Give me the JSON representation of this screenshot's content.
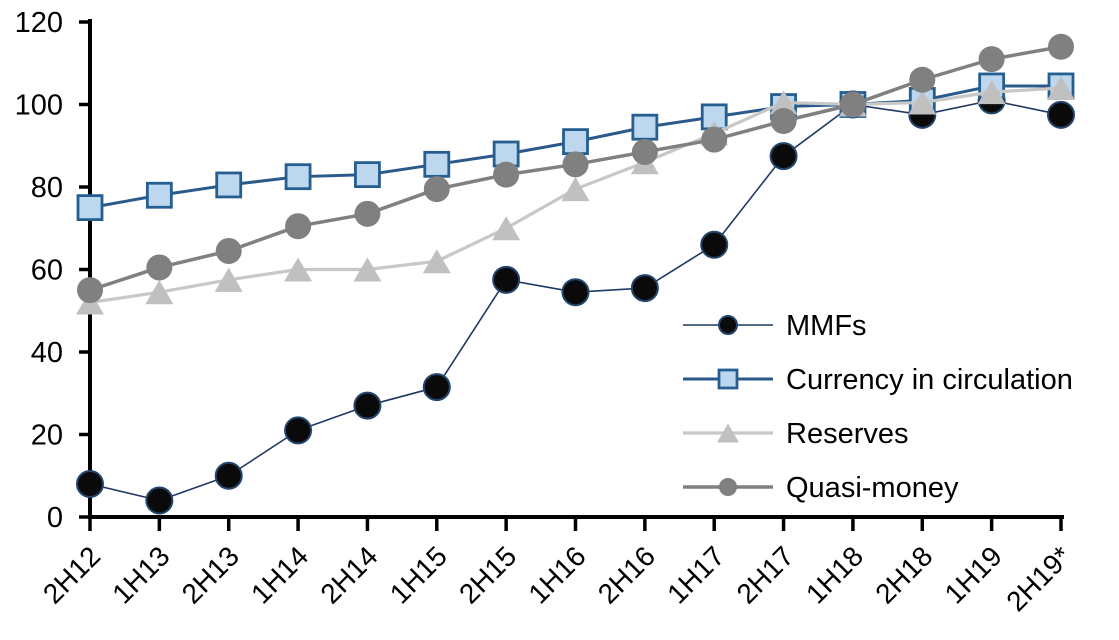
{
  "chart_data": {
    "type": "line",
    "title": "",
    "xlabel": "",
    "ylabel": "",
    "grid": false,
    "categories": [
      "2H12",
      "1H13",
      "2H13",
      "1H14",
      "2H14",
      "1H15",
      "2H15",
      "1H16",
      "2H16",
      "1H17",
      "2H17",
      "1H18",
      "2H18",
      "1H19",
      "2H19*"
    ],
    "y_axis": {
      "min": 0,
      "max": 120,
      "step": 20,
      "tick_labels": [
        "0",
        "20",
        "40",
        "60",
        "80",
        "100",
        "120"
      ]
    },
    "series": [
      {
        "name": "MMFs",
        "marker": "circle",
        "marker_fill": "#0a0a0a",
        "marker_stroke": "#24456e",
        "line_color": "#1f3864",
        "line_width": 1.6,
        "values": [
          8,
          4,
          10,
          21,
          27,
          31.5,
          57.5,
          54.5,
          55.5,
          66,
          87.5,
          100,
          97.5,
          101,
          97.5
        ]
      },
      {
        "name": "Currency in circulation",
        "marker": "square",
        "marker_fill": "#bdd7ee",
        "marker_stroke": "#255e91",
        "line_color": "#2a5a8c",
        "line_width": 3,
        "values": [
          75,
          78,
          80.5,
          82.5,
          83,
          85.5,
          88,
          91,
          94.5,
          97,
          99.5,
          100,
          101,
          104.5,
          104.5
        ]
      },
      {
        "name": "Reserves",
        "marker": "triangle",
        "marker_fill": "#c0c0c0",
        "marker_stroke": "none",
        "line_color": "#c8c8c8",
        "line_width": 3.2,
        "values": [
          52,
          54.5,
          57.5,
          60,
          60,
          62,
          70,
          79.5,
          86,
          93,
          100.5,
          100,
          100.5,
          103,
          104
        ]
      },
      {
        "name": "Quasi-money",
        "marker": "circle",
        "marker_fill": "#808080",
        "marker_stroke": "none",
        "line_color": "#808080",
        "line_width": 3.5,
        "values": [
          55,
          60.5,
          64.5,
          70.5,
          73.5,
          79.5,
          83,
          85.5,
          88.5,
          91.5,
          96,
          100,
          106,
          111,
          114
        ]
      }
    ],
    "legend": {
      "position": "inside-right",
      "items": [
        "MMFs",
        "Currency in circulation",
        "Reserves",
        "Quasi-money"
      ]
    },
    "axis_color": "#000000"
  }
}
